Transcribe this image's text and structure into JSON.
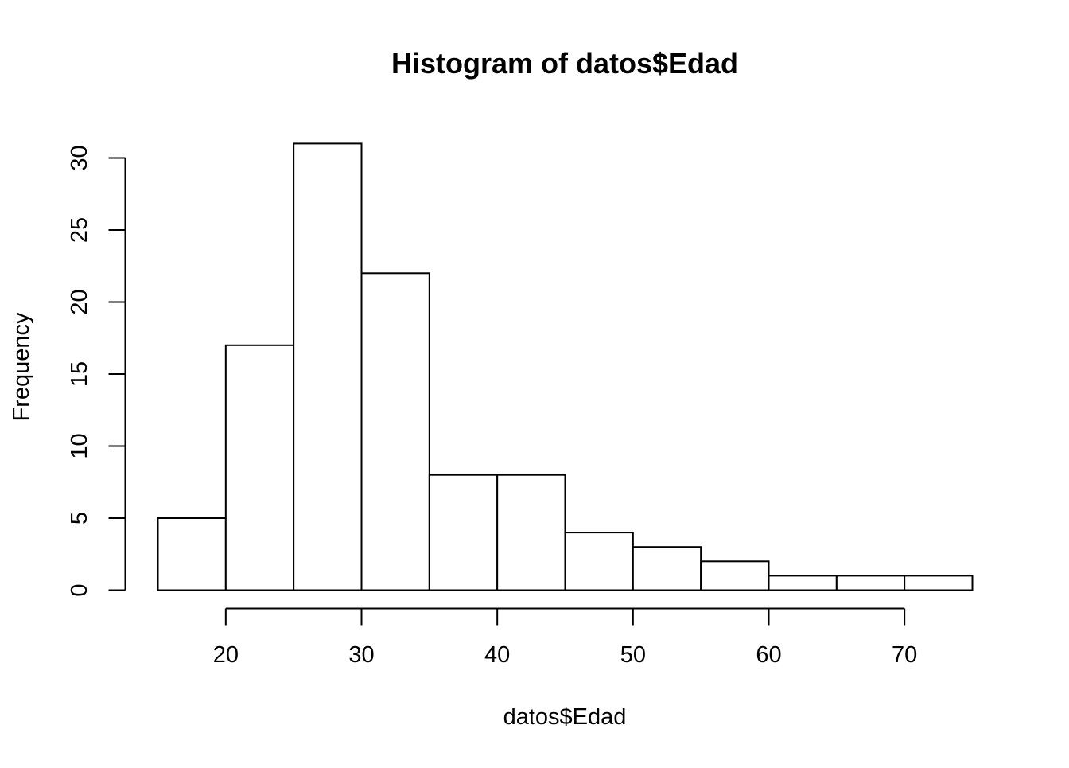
{
  "chart_data": {
    "type": "bar",
    "title": "Histogram of datos$Edad",
    "xlabel": "datos$Edad",
    "ylabel": "Frequency",
    "bins": [
      {
        "start": 15,
        "end": 20,
        "count": 5
      },
      {
        "start": 20,
        "end": 25,
        "count": 17
      },
      {
        "start": 25,
        "end": 30,
        "count": 31
      },
      {
        "start": 30,
        "end": 35,
        "count": 22
      },
      {
        "start": 35,
        "end": 40,
        "count": 8
      },
      {
        "start": 40,
        "end": 45,
        "count": 8
      },
      {
        "start": 45,
        "end": 50,
        "count": 4
      },
      {
        "start": 50,
        "end": 55,
        "count": 3
      },
      {
        "start": 55,
        "end": 60,
        "count": 2
      },
      {
        "start": 60,
        "end": 65,
        "count": 1
      },
      {
        "start": 65,
        "end": 70,
        "count": 1
      },
      {
        "start": 70,
        "end": 75,
        "count": 1
      }
    ],
    "xticks": [
      20,
      30,
      40,
      50,
      60,
      70
    ],
    "yticks": [
      0,
      5,
      10,
      15,
      20,
      25,
      30
    ],
    "xlim": [
      15,
      75
    ],
    "ylim": [
      0,
      31
    ],
    "grid": false,
    "bar_fill": "#ffffff",
    "bar_stroke": "#000000"
  }
}
